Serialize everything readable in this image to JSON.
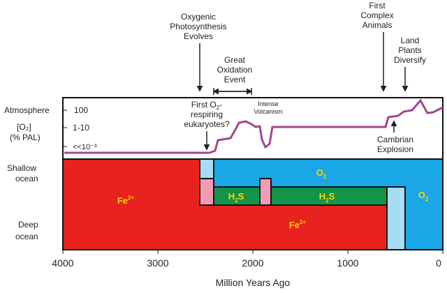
{
  "axis": {
    "title": "Million Years Ago",
    "ticks": [
      "4000",
      "3000",
      "2000",
      "1000",
      "0"
    ]
  },
  "atmosphere": {
    "label": "Atmosphere",
    "unit_line1": "[O₂]",
    "unit_line2": "(% PAL)",
    "levels": [
      "100",
      "1-10",
      "<<10⁻³"
    ]
  },
  "ocean": {
    "shallow_line1": "Shallow",
    "shallow_line2": "ocean",
    "deep_line1": "Deep",
    "deep_line2": "ocean"
  },
  "events": {
    "oxygenic_line1": "Oxygenic",
    "oxygenic_line2": "Photosynthesis",
    "oxygenic_line3": "Evolves",
    "goe_line1": "Great",
    "goe_line2": "Oxidation",
    "goe_line3": "Event",
    "first_o2_line1": "First O",
    "first_o2_sub": "2",
    "first_o2_tail": "-",
    "first_o2_line2": "respiring",
    "first_o2_line3": "eukaryotes?",
    "volcanism_line1": "Intense",
    "volcanism_line2": "Volcanism",
    "complex_line1": "First",
    "complex_line2": "Complex",
    "complex_line3": "Animals",
    "land_line1": "Land",
    "land_line2": "Plants",
    "land_line3": "Diversify",
    "cambrian_line1": "Cambrian",
    "cambrian_line2": "Explosion"
  },
  "chem": {
    "fe": "Fe",
    "fe_sup": "2+",
    "o": "O",
    "o_sub": "2",
    "h2s_a": "H",
    "h2s_sub": "2",
    "h2s_b": "S"
  },
  "colors": {
    "ferruginous": "#e8231f",
    "oxic": "#1aa7e6",
    "euxinic": "#14944a",
    "light_blue": "#a6dcf4",
    "pink": "#f29bb4",
    "curve": "#a0488f"
  }
}
